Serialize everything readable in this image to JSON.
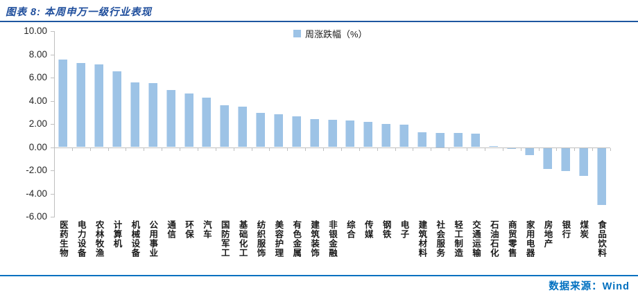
{
  "header": {
    "title": "图表 8: 本周申万一级行业表现"
  },
  "footer": {
    "source": "数据来源：Wind"
  },
  "colors": {
    "bar": "#9DC3E6",
    "top_rule": "#1E56A0",
    "bottom_rule": "#0070C0",
    "title_text": "#1F4E9C",
    "source_text": "#0070C0",
    "axis_line": "#BFBFBF"
  },
  "chart_data": {
    "type": "bar",
    "title": "本周申万一级行业表现",
    "legend": "周涨跌幅（%）",
    "legend_position": "top-center",
    "grid": false,
    "ylim": [
      -6,
      10
    ],
    "ytick_step": 2,
    "ytick_labels": [
      "10.00",
      "8.00",
      "6.00",
      "4.00",
      "2.00",
      "0.00",
      "-2.00",
      "-4.00",
      "-6.00"
    ],
    "xlabel": "",
    "ylabel": "",
    "categories": [
      "医药生物",
      "电力设备",
      "农林牧渔",
      "计算机",
      "机械设备",
      "公用事业",
      "通信",
      "环保",
      "汽车",
      "国防军工",
      "基础化工",
      "纺织服饰",
      "美容护理",
      "有色金属",
      "建筑装饰",
      "非银金融",
      "综合",
      "传媒",
      "钢铁",
      "电子",
      "建筑材料",
      "社会服务",
      "轻工制造",
      "交通运输",
      "石油石化",
      "商贸零售",
      "家用电器",
      "房地产",
      "银行",
      "煤炭",
      "食品饮料"
    ],
    "values": [
      7.53,
      7.27,
      7.14,
      6.55,
      5.57,
      5.52,
      4.94,
      4.62,
      4.26,
      3.62,
      3.52,
      2.94,
      2.82,
      2.64,
      2.41,
      2.37,
      2.3,
      2.15,
      1.99,
      1.97,
      1.27,
      1.25,
      1.2,
      1.18,
      0.1,
      -0.06,
      -0.62,
      -1.8,
      -2.0,
      -2.43,
      -4.95
    ]
  }
}
